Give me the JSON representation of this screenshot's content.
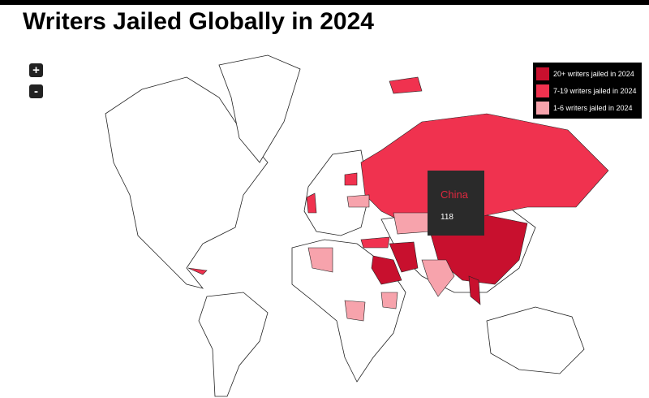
{
  "header": {
    "title": "Writers Jailed Globally in 2024"
  },
  "controls": {
    "zoom_in": "+",
    "zoom_out": "-"
  },
  "legend": {
    "items": [
      {
        "label": "20+ writers jailed in 2024",
        "color": "#c8102e"
      },
      {
        "label": "7-19 writers jailed in 2024",
        "color": "#f0324f"
      },
      {
        "label": "1-6 writers jailed in 2024",
        "color": "#f7a3ac"
      }
    ]
  },
  "tooltip": {
    "country": "China",
    "value": "118"
  }
}
